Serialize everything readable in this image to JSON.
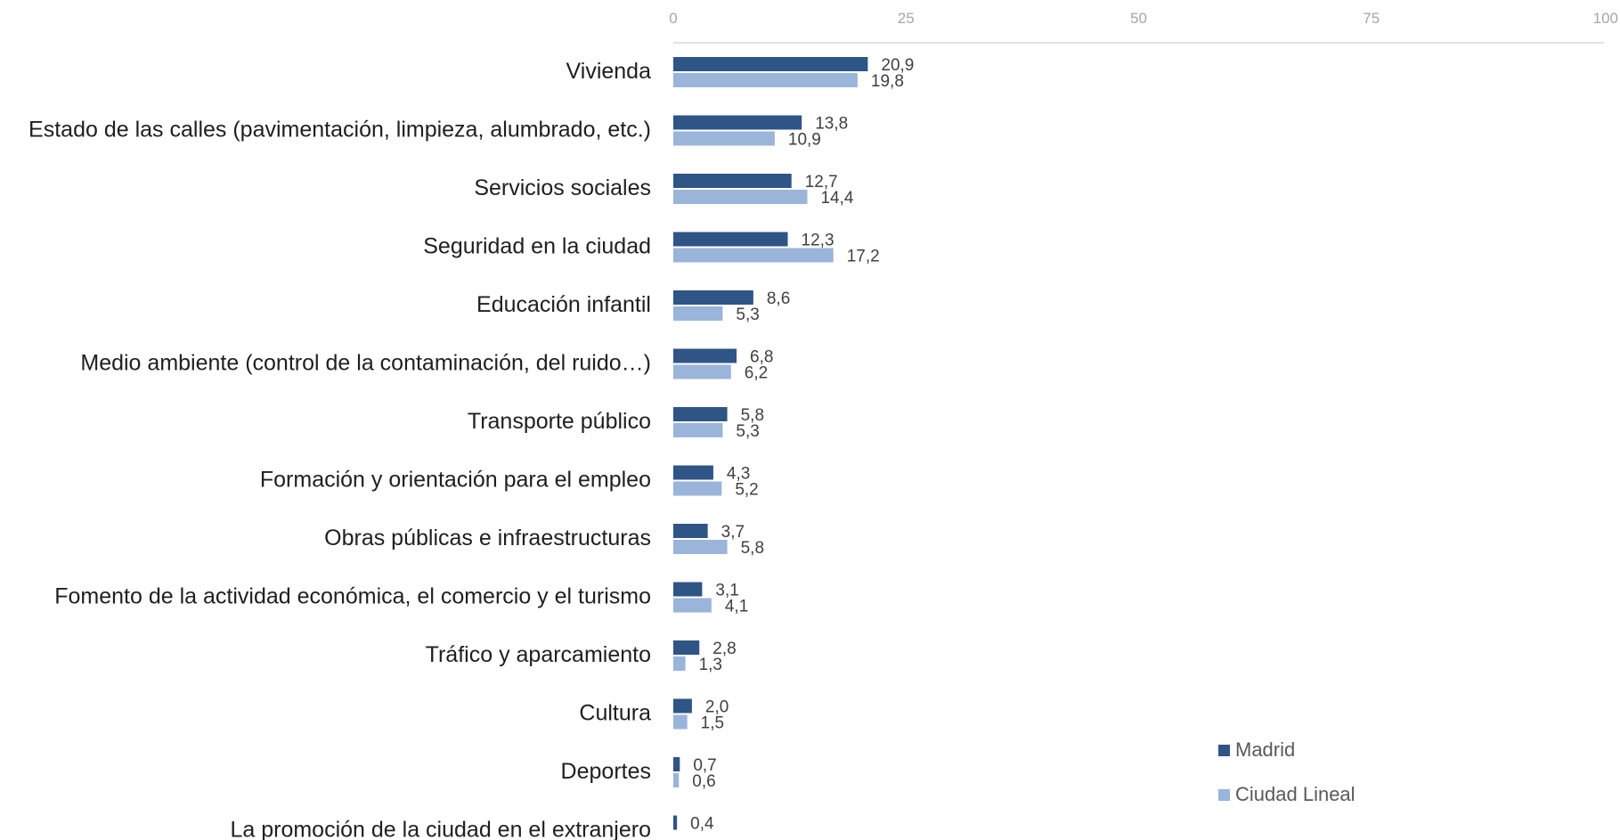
{
  "chart_data": {
    "type": "bar",
    "orientation": "horizontal",
    "title": "",
    "xlabel": "",
    "ylabel": "",
    "xlim": [
      0,
      100
    ],
    "x_ticks": [
      "0",
      "25",
      "50",
      "75",
      "100"
    ],
    "x_tick_values": [
      0,
      25,
      50,
      75,
      100
    ],
    "axis_position": "top",
    "grid": false,
    "legend_position": "bottom-right",
    "categories": [
      "Vivienda",
      "Estado de las calles (pavimentación, limpieza, alumbrado, etc.)",
      "Servicios sociales",
      "Seguridad en la ciudad",
      "Educación infantil",
      "Medio ambiente (control de la contaminación, del ruido…)",
      "Transporte público",
      "Formación y orientación para el empleo",
      "Obras públicas e infraestructuras",
      "Fomento de la actividad económica, el comercio y el turismo",
      "Tráfico y aparcamiento",
      "Cultura",
      "Deportes",
      "La promoción de la ciudad en el extranjero"
    ],
    "series": [
      {
        "name": "Madrid",
        "color": "#2f5486",
        "values": [
          20.9,
          13.8,
          12.7,
          12.3,
          8.6,
          6.8,
          5.8,
          4.3,
          3.7,
          3.1,
          2.8,
          2.0,
          0.7,
          0.4
        ],
        "labels": [
          "20,9",
          "13,8",
          "12,7",
          "12,3",
          "8,6",
          "6,8",
          "5,8",
          "4,3",
          "3,7",
          "3,1",
          "2,8",
          "2,0",
          "0,7",
          "0,4"
        ]
      },
      {
        "name": "Ciudad Lineal",
        "color": "#9ab4da",
        "values": [
          19.8,
          10.9,
          14.4,
          17.2,
          5.3,
          6.2,
          5.3,
          5.2,
          5.8,
          4.1,
          1.3,
          1.5,
          0.6,
          null
        ],
        "labels": [
          "19,8",
          "10,9",
          "14,4",
          "17,2",
          "5,3",
          "6,2",
          "5,3",
          "5,2",
          "5,8",
          "4,1",
          "1,3",
          "1,5",
          "0,6",
          null
        ]
      }
    ]
  }
}
